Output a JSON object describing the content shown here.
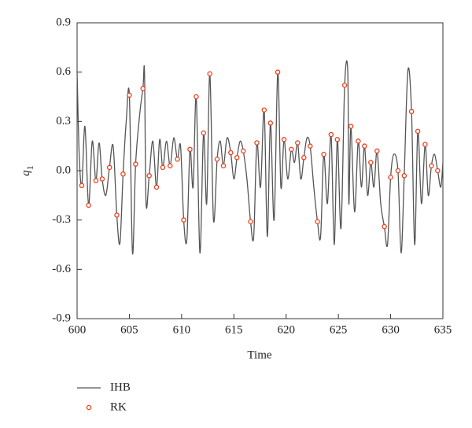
{
  "chart_data": {
    "type": "line",
    "xlabel": "Time",
    "ylabel": {
      "symbol": "q",
      "subscript": "1"
    },
    "xlim": [
      600,
      635
    ],
    "ylim": [
      -0.9,
      0.9
    ],
    "xticks": [
      600,
      605,
      610,
      615,
      620,
      625,
      630,
      635
    ],
    "yticks": [
      -0.9,
      -0.6,
      -0.3,
      {
        "value": 0,
        "label": "0.0"
      },
      0.3,
      0.6,
      0.9
    ],
    "series": [
      {
        "name": "IHB",
        "color": "#555555",
        "style": "line",
        "x": [
          600.0,
          600.2,
          600.45,
          600.75,
          601.1,
          601.45,
          601.8,
          602.1,
          602.4,
          602.75,
          603.1,
          603.45,
          603.8,
          604.1,
          604.4,
          604.7,
          605.0,
          605.3,
          605.6,
          606.0,
          606.3,
          606.45,
          606.6,
          606.9,
          607.25,
          607.6,
          607.9,
          608.2,
          608.55,
          608.9,
          609.25,
          609.6,
          609.9,
          610.2,
          610.5,
          610.8,
          611.1,
          611.4,
          611.75,
          612.1,
          612.4,
          612.7,
          613.05,
          613.4,
          613.7,
          614.0,
          614.35,
          614.7,
          615.0,
          615.3,
          615.6,
          615.9,
          616.25,
          616.6,
          616.9,
          617.2,
          617.55,
          617.9,
          618.2,
          618.5,
          618.85,
          619.2,
          619.5,
          619.8,
          620.15,
          620.5,
          620.8,
          621.1,
          621.4,
          621.7,
          622.0,
          622.3,
          622.65,
          623.0,
          623.3,
          623.6,
          623.95,
          624.3,
          624.6,
          624.9,
          625.25,
          625.6,
          625.9,
          626.0,
          626.2,
          626.55,
          626.9,
          627.2,
          627.5,
          627.8,
          628.1,
          628.4,
          628.7,
          629.05,
          629.4,
          629.7,
          630.0,
          630.3,
          630.7,
          631.0,
          631.3,
          631.65,
          632.0,
          632.3,
          632.6,
          632.95,
          633.3,
          633.6,
          633.9,
          634.2,
          634.5,
          634.8,
          635.0
        ],
        "values": [
          0.6,
          0.1,
          -0.09,
          0.27,
          -0.21,
          0.18,
          -0.06,
          0.17,
          -0.05,
          -0.15,
          0.02,
          0.15,
          -0.27,
          -0.44,
          -0.02,
          0.3,
          0.46,
          -0.5,
          0.04,
          0.35,
          0.5,
          0.6,
          -0.2,
          -0.03,
          0.18,
          -0.1,
          0.19,
          0.02,
          0.18,
          0.03,
          0.2,
          0.07,
          0.15,
          -0.3,
          -0.42,
          0.13,
          -0.1,
          0.45,
          -0.5,
          0.23,
          -0.2,
          0.59,
          -0.3,
          0.07,
          0.18,
          0.03,
          0.2,
          0.11,
          -0.05,
          0.08,
          0.18,
          0.12,
          -0.05,
          -0.31,
          -0.4,
          0.17,
          -0.1,
          0.37,
          -0.4,
          0.29,
          -0.3,
          0.6,
          -0.1,
          0.19,
          -0.05,
          0.13,
          0.05,
          0.17,
          -0.05,
          0.08,
          0.2,
          0.15,
          -0.1,
          -0.31,
          -0.4,
          0.1,
          -0.2,
          0.22,
          -0.45,
          0.19,
          -0.35,
          0.52,
          0.6,
          -0.2,
          0.27,
          -0.25,
          0.18,
          -0.1,
          0.15,
          -0.15,
          0.05,
          -0.1,
          0.12,
          -0.2,
          -0.34,
          -0.45,
          -0.04,
          0.1,
          0.0,
          -0.5,
          -0.03,
          0.61,
          0.36,
          -0.45,
          0.24,
          -0.2,
          0.16,
          -0.15,
          0.03,
          0.1,
          0.0,
          -0.1,
          0.05
        ]
      },
      {
        "name": "RK",
        "color": "#e8401c",
        "style": "marker",
        "x": [
          600.45,
          601.1,
          601.8,
          602.4,
          603.1,
          603.8,
          604.4,
          605.0,
          605.6,
          606.3,
          606.9,
          607.6,
          608.2,
          608.9,
          609.6,
          610.2,
          610.8,
          611.4,
          612.1,
          612.7,
          613.4,
          614.0,
          614.7,
          615.3,
          615.9,
          616.6,
          617.2,
          617.9,
          618.5,
          619.2,
          619.8,
          620.5,
          621.1,
          621.7,
          622.3,
          623.0,
          623.6,
          624.3,
          624.9,
          625.6,
          626.2,
          626.9,
          627.5,
          628.1,
          628.7,
          629.4,
          630.0,
          630.7,
          631.3,
          632.0,
          632.6,
          633.3,
          633.9,
          634.5
        ],
        "values": [
          -0.09,
          -0.21,
          -0.06,
          -0.05,
          0.02,
          -0.27,
          -0.02,
          0.46,
          0.04,
          0.5,
          -0.03,
          -0.1,
          0.02,
          0.03,
          0.07,
          -0.3,
          0.13,
          0.45,
          0.23,
          0.59,
          0.07,
          0.03,
          0.11,
          0.08,
          0.12,
          -0.31,
          0.17,
          0.37,
          0.29,
          0.6,
          0.19,
          0.13,
          0.17,
          0.08,
          0.15,
          -0.31,
          0.1,
          0.22,
          0.19,
          0.52,
          0.27,
          0.18,
          0.15,
          0.05,
          0.12,
          -0.34,
          -0.04,
          0.0,
          -0.03,
          0.36,
          0.24,
          0.16,
          0.03,
          0.0
        ]
      }
    ]
  }
}
